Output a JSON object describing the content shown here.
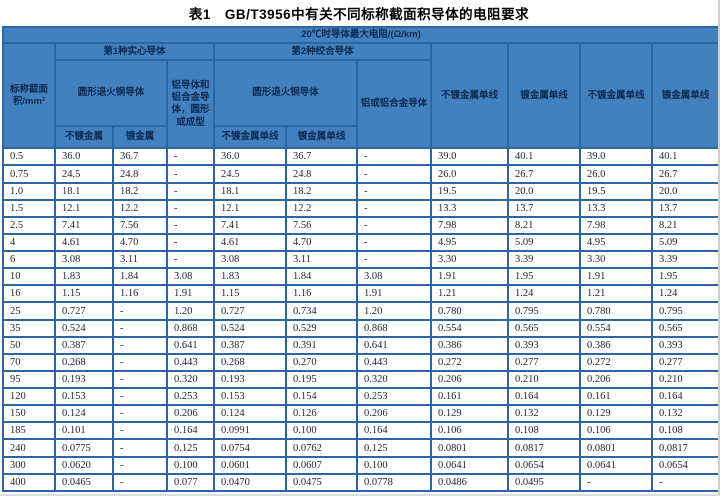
{
  "title": "表1　GB/T3956中有关不同标称截面积导体的电阻要求",
  "colors": {
    "header_bg": "#4380bf",
    "border_blue": "#2b65a4",
    "header_text": "#0d2b52",
    "data_text": "#1d2531",
    "page_bg": "#ffffff"
  },
  "table": {
    "unit_header": "20℃时导体最大电阻/(Ω/km)",
    "col_cross_section": "标称截面积/mm²",
    "group_solid": "第1种实心导体",
    "group_stranded": "第2种绞合导体",
    "solid_copper": "圆形退火铜导体",
    "solid_aluminium": "铝导体和铝合金导体，圆形或成型",
    "stranded_copper": "圆形退火铜导体",
    "stranded_aluminium": "铝或铝合金导体",
    "solid_copper_plain": "不镀金属",
    "solid_copper_coated": "镀金属",
    "stranded_copper_plain": "不镀金属单线",
    "stranded_copper_coated": "镀金属单线",
    "right_col_1": "不镀金属单线",
    "right_col_2": "镀金属单线",
    "right_col_3": "不镀金属单线",
    "right_col_4": "镀金属单线",
    "rows": [
      [
        "0.5",
        "36.0",
        "36.7",
        "-",
        "36.0",
        "36.7",
        "-",
        "39.0",
        "40.1",
        "39.0",
        "40.1"
      ],
      [
        "0.75",
        "24.5",
        "24.8",
        "-",
        "24.5",
        "24.8",
        "-",
        "26.0",
        "26.7",
        "26.0",
        "26.7"
      ],
      [
        "1.0",
        "18.1",
        "18.2",
        "-",
        "18.1",
        "18.2",
        "-",
        "19.5",
        "20.0",
        "19.5",
        "20.0"
      ],
      [
        "1.5",
        "12.1",
        "12.2",
        "-",
        "12.1",
        "12.2",
        "-",
        "13.3",
        "13.7",
        "13.3",
        "13.7"
      ],
      [
        "2.5",
        "7.41",
        "7.56",
        "-",
        "7.41",
        "7.56",
        "-",
        "7.98",
        "8.21",
        "7.98",
        "8.21"
      ],
      [
        "4",
        "4.61",
        "4.70",
        "-",
        "4.61",
        "4.70",
        "-",
        "4.95",
        "5.09",
        "4.95",
        "5.09"
      ],
      [
        "6",
        "3.08",
        "3.11",
        "-",
        "3.08",
        "3.11",
        "-",
        "3.30",
        "3.39",
        "3.30",
        "3.39"
      ],
      [
        "10",
        "1.83",
        "1.84",
        "3.08",
        "1.83",
        "1.84",
        "3.08",
        "1.91",
        "1.95",
        "1.91",
        "1.95"
      ],
      [
        "16",
        "1.15",
        "1.16",
        "1.91",
        "1.15",
        "1.16",
        "1.91",
        "1.21",
        "1.24",
        "1.21",
        "1.24"
      ],
      [
        "25",
        "0.727",
        "-",
        "1.20",
        "0.727",
        "0.734",
        "1.20",
        "0.780",
        "0.795",
        "0.780",
        "0.795"
      ],
      [
        "35",
        "0.524",
        "-",
        "0.868",
        "0.524",
        "0.529",
        "0.868",
        "0.554",
        "0.565",
        "0.554",
        "0.565"
      ],
      [
        "50",
        "0.387",
        "-",
        "0.641",
        "0.387",
        "0.391",
        "0.641",
        "0.386",
        "0.393",
        "0.386",
        "0.393"
      ],
      [
        "70",
        "0.268",
        "-",
        "0.443",
        "0.268",
        "0.270",
        "0.443",
        "0.272",
        "0.277",
        "0.272",
        "0.277"
      ],
      [
        "95",
        "0.193",
        "-",
        "0.320",
        "0.193",
        "0.195",
        "0.320",
        "0.206",
        "0.210",
        "0.206",
        "0.210"
      ],
      [
        "120",
        "0.153",
        "-",
        "0.253",
        "0.153",
        "0.154",
        "0.253",
        "0.161",
        "0.164",
        "0.161",
        "0.164"
      ],
      [
        "150",
        "0.124",
        "-",
        "0.206",
        "0.124",
        "0.126",
        "0.206",
        "0.129",
        "0.132",
        "0.129",
        "0.132"
      ],
      [
        "185",
        "0.101",
        "-",
        "0.164",
        "0.0991",
        "0.100",
        "0.164",
        "0.106",
        "0.108",
        "0.106",
        "0.108"
      ],
      [
        "240",
        "0.0775",
        "-",
        "0.125",
        "0.0754",
        "0.0762",
        "0.125",
        "0.0801",
        "0.0817",
        "0.0801",
        "0.0817"
      ],
      [
        "300",
        "0.0620",
        "-",
        "0.100",
        "0.0601",
        "0.0607",
        "0.100",
        "0.0641",
        "0.0654",
        "0.0641",
        "0.0654"
      ],
      [
        "400",
        "0.0465",
        "-",
        "0.077",
        "0.0470",
        "0.0475",
        "0.0778",
        "0.0486",
        "0.0495",
        "-",
        "-"
      ]
    ]
  }
}
